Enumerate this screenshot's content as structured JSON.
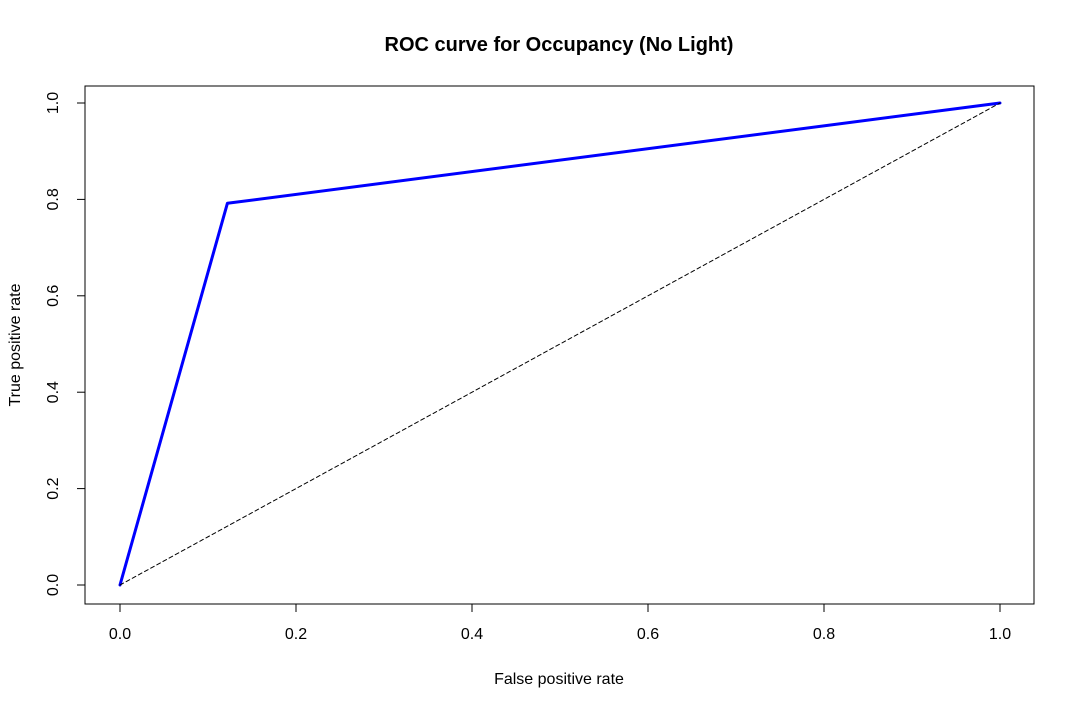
{
  "chart_data": {
    "type": "line",
    "title": "ROC curve for Occupancy (No Light)",
    "xlabel": "False positive rate",
    "ylabel": "True positive rate",
    "xlim": [
      0,
      1
    ],
    "ylim": [
      0,
      1
    ],
    "x_ticks": [
      "0.0",
      "0.2",
      "0.4",
      "0.6",
      "0.8",
      "1.0"
    ],
    "y_ticks": [
      "0.0",
      "0.2",
      "0.4",
      "0.6",
      "0.8",
      "1.0"
    ],
    "grid": false,
    "legend": "none",
    "series": [
      {
        "color": "#0000ff",
        "style": "solid",
        "x": [
          0.0,
          0.122,
          1.0
        ],
        "y": [
          0.0,
          0.792,
          1.0
        ]
      },
      {
        "color": "#000000",
        "style": "dashed",
        "x": [
          0.0,
          1.0
        ],
        "y": [
          0.0,
          1.0
        ]
      }
    ]
  }
}
